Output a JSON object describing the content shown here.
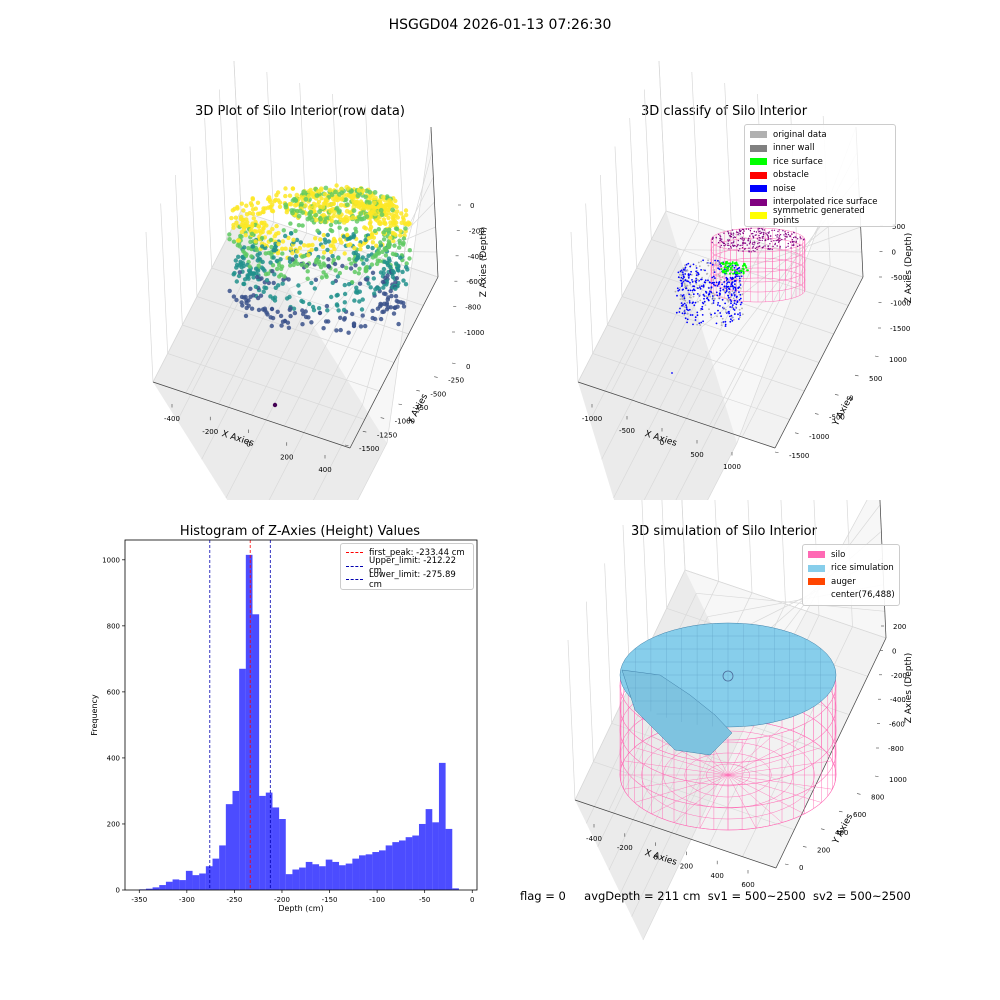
{
  "figure": {
    "suptitle": "HSGGD04 2026-01-13 07:26:30",
    "status": {
      "flag": "flag = 0",
      "avg_depth": "avgDepth = 211 cm",
      "sv1": "sv1 = 500~2500",
      "sv2": "sv2 = 500~2500"
    }
  },
  "chart_data": [
    {
      "type": "scatter",
      "title": "3D Plot of Silo Interior(row data)",
      "xlabel": "X Axies",
      "ylabel": "Y Axies",
      "zlabel": "Z Axies (Depth)",
      "x_ticks": [
        "-400",
        "-200",
        "0",
        "200",
        "400"
      ],
      "y_ticks": [
        "0",
        "-250",
        "-500",
        "-750",
        "-1000",
        "-1250",
        "-1500"
      ],
      "z_ticks": [
        "0",
        "-200",
        "-400",
        "-600",
        "-800",
        "-1000"
      ],
      "colormap": [
        "#440154",
        "#3b528b",
        "#21918c",
        "#5ec962",
        "#fde725"
      ]
    },
    {
      "type": "scatter",
      "title": "3D classify of Silo Interior",
      "xlabel": "X Axies",
      "ylabel": "Y Axies",
      "zlabel": "Z Axies (Depth)",
      "x_ticks": [
        "-1000",
        "-500",
        "0",
        "500",
        "1000"
      ],
      "y_ticks": [
        "1000",
        "500",
        "0",
        "-500",
        "-1000",
        "-1500"
      ],
      "z_ticks": [
        "500",
        "0",
        "-500",
        "-1000",
        "-1500"
      ],
      "legend": [
        {
          "label": "original data",
          "color": "#b0b0b0"
        },
        {
          "label": "inner wall",
          "color": "#808080"
        },
        {
          "label": "rice surface",
          "color": "#00ff00"
        },
        {
          "label": "obstacle",
          "color": "#ff0000"
        },
        {
          "label": "noise",
          "color": "#0000ff"
        },
        {
          "label": "interpolated rice surface",
          "color": "#800080"
        },
        {
          "label": "symmetric generated points",
          "color": "#ffff00"
        }
      ],
      "legend_placement": "top-right"
    },
    {
      "type": "bar",
      "title": "Histogram of Z-Axies (Height) Values",
      "xlabel": "Depth (cm)",
      "ylabel": "Frequency",
      "xlim": [
        -365,
        5
      ],
      "ylim": [
        0,
        1060
      ],
      "x_ticks": [
        -350,
        -300,
        -250,
        -200,
        -150,
        -100,
        -50,
        0
      ],
      "y_ticks": [
        0,
        200,
        400,
        600,
        800,
        1000
      ],
      "bar_color": "#0000ff",
      "bin_start": -350,
      "bin_width": 7,
      "values": [
        2,
        4,
        8,
        15,
        25,
        32,
        30,
        58,
        45,
        50,
        72,
        95,
        135,
        260,
        300,
        670,
        1015,
        835,
        285,
        295,
        250,
        215,
        48,
        62,
        68,
        85,
        78,
        72,
        92,
        85,
        75,
        80,
        95,
        105,
        108,
        115,
        120,
        135,
        145,
        150,
        160,
        165,
        200,
        245,
        205,
        385,
        185,
        5
      ],
      "lines": [
        {
          "label": "first_peak: -233.44 cm",
          "x": -233.44,
          "color": "#ff0000"
        },
        {
          "label": "Upper_limit: -212.22 cm",
          "x": -212.22,
          "color": "#0000b0"
        },
        {
          "label": "Lower_limit: -275.89 cm",
          "x": -275.89,
          "color": "#0000b0"
        }
      ],
      "legend_placement": "top-right"
    },
    {
      "type": "area",
      "title": "3D simulation of Silo Interior",
      "xlabel": "X Axies",
      "ylabel": "Y Axies",
      "zlabel": "Z Axies (Depth)",
      "x_ticks": [
        "-400",
        "-200",
        "0",
        "200",
        "400",
        "600"
      ],
      "y_ticks": [
        "1000",
        "800",
        "600",
        "400",
        "200",
        "0"
      ],
      "z_ticks": [
        "200",
        "0",
        "-200",
        "-400",
        "-600",
        "-800"
      ],
      "legend": [
        {
          "label": "silo",
          "color": "#ff69b4"
        },
        {
          "label": "rice simulation",
          "color": "#87ceeb"
        },
        {
          "label": "auger",
          "color": "#ff4500"
        },
        {
          "label": "center(76,488)",
          "color": "transparent"
        }
      ],
      "legend_placement": "top-right"
    }
  ]
}
